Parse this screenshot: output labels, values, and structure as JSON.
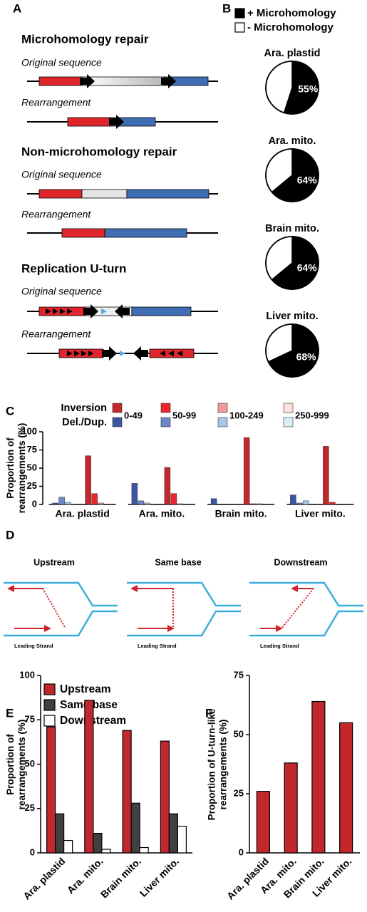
{
  "panel_labels": [
    "A",
    "B",
    "C",
    "D",
    "E",
    "F"
  ],
  "diagram_a": {
    "sections": [
      {
        "title": "Microhomology repair",
        "rows": [
          "Original sequence",
          "Rearrangement"
        ]
      },
      {
        "title": "Non-microhomology repair",
        "rows": [
          "Original sequence",
          "Rearrangement"
        ]
      },
      {
        "title": "Replication U-turn",
        "rows": [
          "Original sequence",
          "Rearrangement"
        ]
      }
    ]
  },
  "diagram_d": {
    "titles": [
      "Upstream",
      "Same base",
      "Downstream"
    ],
    "strand_label": "Leading Strand"
  },
  "chart_data": [
    {
      "type": "pie",
      "series": [
        {
          "name": "+ Microhomology",
          "color": "#000000"
        },
        {
          "name": "- Microhomology",
          "color": "#ffffff"
        }
      ],
      "pies": [
        {
          "title": "Ara. plastid",
          "values": [
            55,
            45
          ],
          "value_labels": [
            "55%",
            null
          ]
        },
        {
          "title": "Ara. mito.",
          "values": [
            64,
            36
          ],
          "value_labels": [
            "64%",
            null
          ]
        },
        {
          "title": "Brain mito.",
          "values": [
            64,
            36
          ],
          "value_labels": [
            "64%",
            null
          ]
        },
        {
          "title": "Liver mito.",
          "values": [
            68,
            32
          ],
          "value_labels": [
            "68%",
            null
          ]
        }
      ]
    },
    {
      "type": "grouped_bar",
      "ylabel": "Proportion of rearrangements (%)",
      "categories": [
        "Ara. plastid",
        "Ara. mito.",
        "Brain mito.",
        "Liver mito."
      ],
      "size_classes": [
        "0-49",
        "50-99",
        "100-249",
        "250-999"
      ],
      "series": [
        {
          "name": "Inversion",
          "colors": [
            "#c1272d",
            "#e8262c",
            "#f29a9a",
            "#fbe2da"
          ],
          "values": [
            [
              67,
              15,
              2,
              0
            ],
            [
              51,
              15,
              1,
              0
            ],
            [
              92,
              1,
              1,
              0
            ],
            [
              80,
              3,
              0,
              0
            ]
          ]
        },
        {
          "name": "Del./Dup.",
          "colors": [
            "#3b55a5",
            "#6c88c9",
            "#a9c6e8",
            "#d8eef9"
          ],
          "values": [
            [
              2,
              10,
              3,
              0
            ],
            [
              29,
              5,
              2,
              0
            ],
            [
              8,
              0,
              0,
              0
            ],
            [
              13,
              2,
              5,
              0
            ]
          ]
        }
      ],
      "ylim": [
        0,
        100
      ],
      "yticks": [
        0,
        25,
        50,
        75,
        100
      ]
    },
    {
      "type": "bar",
      "ylabel": "Proportion of rearrangements (%)",
      "categories": [
        "Ara. plastid",
        "Ara. mito.",
        "Brain mito.",
        "Liver mito."
      ],
      "series": [
        {
          "name": "Upstream",
          "color": "#c1272d",
          "values": [
            71,
            86,
            69,
            63
          ]
        },
        {
          "name": "Same base",
          "color": "#404040",
          "values": [
            22,
            11,
            28,
            22
          ]
        },
        {
          "name": "Downstream",
          "color": "#ffffff",
          "values": [
            7,
            2,
            3,
            15
          ]
        }
      ],
      "ylim": [
        0,
        100
      ],
      "yticks": [
        0,
        25,
        50,
        75,
        100
      ]
    },
    {
      "type": "bar",
      "ylabel": "Proportion of U-turn-like rearrangements (%)",
      "categories": [
        "Ara. plastid",
        "Ara. mito.",
        "Brain mito.",
        "Liver mito."
      ],
      "values": [
        26,
        38,
        64,
        55
      ],
      "color": "#c1272d",
      "ylim": [
        0,
        75
      ],
      "yticks": [
        0,
        25,
        50,
        75
      ]
    }
  ]
}
